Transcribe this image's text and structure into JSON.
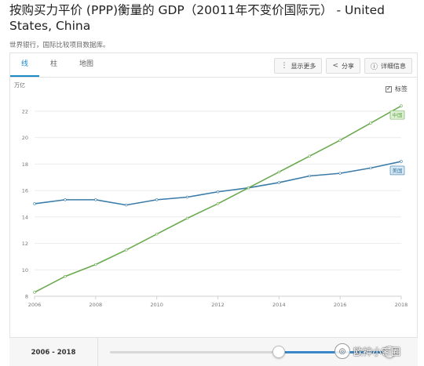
{
  "header": {
    "title": "按购买力平价 (PPP)衡量的 GDP（20011年不变价国际元） - United States, China",
    "subtitle": "世界银行，国际比较项目数据库。"
  },
  "tabs": [
    {
      "label": "线"
    },
    {
      "label": "柱"
    },
    {
      "label": "地图"
    }
  ],
  "actions": {
    "show_more": "显示更多",
    "share": "分享",
    "details": "详细信息"
  },
  "label_toggle": {
    "label": "标签",
    "checked": true
  },
  "unit_label": "万亿",
  "footer": {
    "range_label": "2006 - 2018",
    "slider_start_fraction": 0.0,
    "slider_end_fraction": 1.0
  },
  "watermark": "欧神小密圈",
  "colors": {
    "accent": "#1a8ac7",
    "us_line": "#3a7ba8",
    "china_line": "#6aaa4e"
  },
  "chart_data": {
    "type": "line",
    "x": [
      2006,
      2007,
      2008,
      2009,
      2010,
      2011,
      2012,
      2013,
      2014,
      2015,
      2016,
      2017,
      2018
    ],
    "xticks": [
      "2006",
      "2008",
      "2010",
      "2012",
      "2014",
      "2016",
      "2018"
    ],
    "yticks": [
      "8",
      "10",
      "12",
      "14",
      "16",
      "18",
      "20",
      "22"
    ],
    "ylim": [
      8,
      23
    ],
    "xlim": [
      2006,
      2018
    ],
    "grid": true,
    "series": [
      {
        "name": "美国",
        "values": [
          15.0,
          15.3,
          15.3,
          14.9,
          15.3,
          15.5,
          15.9,
          16.2,
          16.6,
          17.1,
          17.3,
          17.7,
          18.2
        ]
      },
      {
        "name": "中国",
        "values": [
          8.3,
          9.5,
          10.4,
          11.5,
          12.7,
          13.9,
          15.0,
          16.2,
          17.4,
          18.6,
          19.8,
          21.1,
          22.4
        ]
      }
    ]
  }
}
